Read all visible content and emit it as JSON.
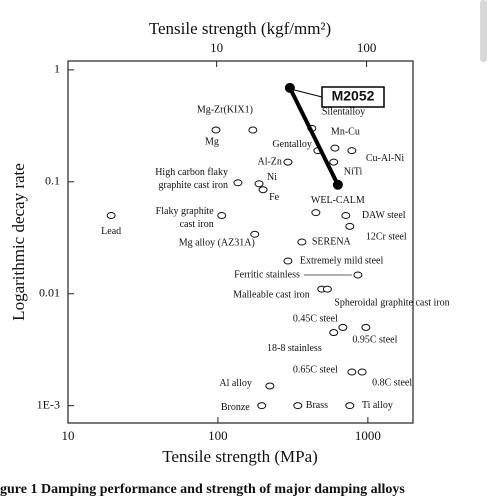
{
  "chart_data": {
    "type": "scatter",
    "title_top": "Tensile strength (kgf/mm²)",
    "xlabel": "Tensile strength (MPa)",
    "ylabel": "Logarithmic decay rate",
    "caption": "gure 1 Damping performance and strength of major damping alloys",
    "log_x": true,
    "log_y": true,
    "xlim": [
      10,
      2000
    ],
    "xticks": [
      10,
      100,
      1000
    ],
    "x2lim": [
      1.02,
      204
    ],
    "x2ticks": [
      10,
      100
    ],
    "ylim": [
      0.0007,
      1.2
    ],
    "yticks": [
      1,
      0.1,
      0.01,
      {
        "value": 0.001,
        "label": "1E-3"
      }
    ],
    "color": "#111111",
    "point_labels": [
      [
        "Mg-Zr(KIX1)"
      ],
      [
        "Mg"
      ],
      [
        "Silentalloy"
      ],
      [
        "Gentalloy"
      ],
      [
        "Mn-Cu"
      ],
      [
        "Al-Zn"
      ],
      [
        "Cu-Al-Ni"
      ],
      [
        "NiTi"
      ],
      [
        "Ni"
      ],
      [
        "Fe"
      ],
      [
        "High carbon flaky",
        "graphite cast iron"
      ],
      [
        "WEL-CALM"
      ],
      [
        "DAW steel"
      ],
      [
        "12Cr steel"
      ],
      [
        "Lead"
      ],
      [
        "Flaky graphite",
        "cast iron"
      ],
      [
        "Mg alloy (AZ31A)"
      ],
      [
        "SERENA"
      ],
      [
        "Extremely mild steel"
      ],
      [
        "Ferritic stainless"
      ],
      [
        "Malleable cast iron"
      ],
      [
        "Spheroidal graphite cast iron"
      ],
      [
        "0.45C steel"
      ],
      [
        "18-8 stainless"
      ],
      [
        "0.95C steel"
      ],
      [
        "0.65C steel"
      ],
      [
        "0.8C steel"
      ],
      [
        "Al alloy"
      ],
      [
        "Bronze"
      ],
      [
        "Brass"
      ],
      [
        "Ti alloy"
      ]
    ],
    "x": [
      171,
      97,
      423,
      464,
      603,
      293,
      782,
      592,
      188,
      200,
      136,
      450,
      713,
      758,
      19.4,
      106,
      176,
      363,
      293,
      858,
      493,
      537,
      681,
      592,
      970,
      782,
      916,
      222,
      196,
      341,
      758
    ],
    "y": [
      0.29,
      0.29,
      0.3,
      0.19,
      0.2,
      0.15,
      0.19,
      0.15,
      0.096,
      0.085,
      0.098,
      0.053,
      0.05,
      0.04,
      0.05,
      0.05,
      0.034,
      0.029,
      0.0196,
      0.0147,
      0.011,
      0.011,
      0.005,
      0.0045,
      0.005,
      0.002,
      0.002,
      0.0015,
      0.001,
      0.001,
      0.001
    ],
    "m2052": {
      "label": "M2052",
      "x": [
        302,
        631
      ],
      "y": [
        0.69,
        0.094
      ]
    }
  }
}
